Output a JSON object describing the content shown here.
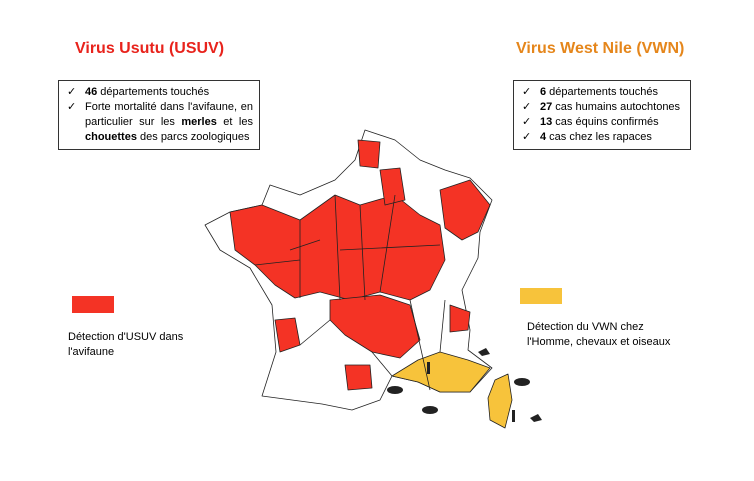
{
  "usutu": {
    "title": "Virus Usutu (USUV)",
    "items": [
      [
        {
          "text": "46",
          "bold": true
        },
        {
          "text": " départements touchés"
        }
      ],
      [
        {
          "text": "Forte mortalité dans l'avifaune, en particulier sur les "
        },
        {
          "text": "merles",
          "bold": true
        },
        {
          "text": " et les "
        },
        {
          "text": "chouettes",
          "bold": true
        },
        {
          "text": " des parcs zoologiques"
        }
      ]
    ],
    "legend": {
      "label": "Détection d'USUV dans l'avifaune",
      "color": "#f43325"
    }
  },
  "wnv": {
    "title": "Virus West Nile (VWN)",
    "items": [
      [
        {
          "text": "6",
          "bold": true
        },
        {
          "text": " départements touchés"
        }
      ],
      [
        {
          "text": "27",
          "bold": true
        },
        {
          "text": " cas humains autochtones"
        }
      ],
      [
        {
          "text": "13",
          "bold": true
        },
        {
          "text": " cas équins confirmés"
        }
      ],
      [
        {
          "text": "4",
          "bold": true
        },
        {
          "text": " cas chez les rapaces"
        }
      ]
    ],
    "legend": {
      "label": "Détection du VWN chez l'Homme, chevaux et oiseaux",
      "color": "#f7c33b"
    }
  }
}
